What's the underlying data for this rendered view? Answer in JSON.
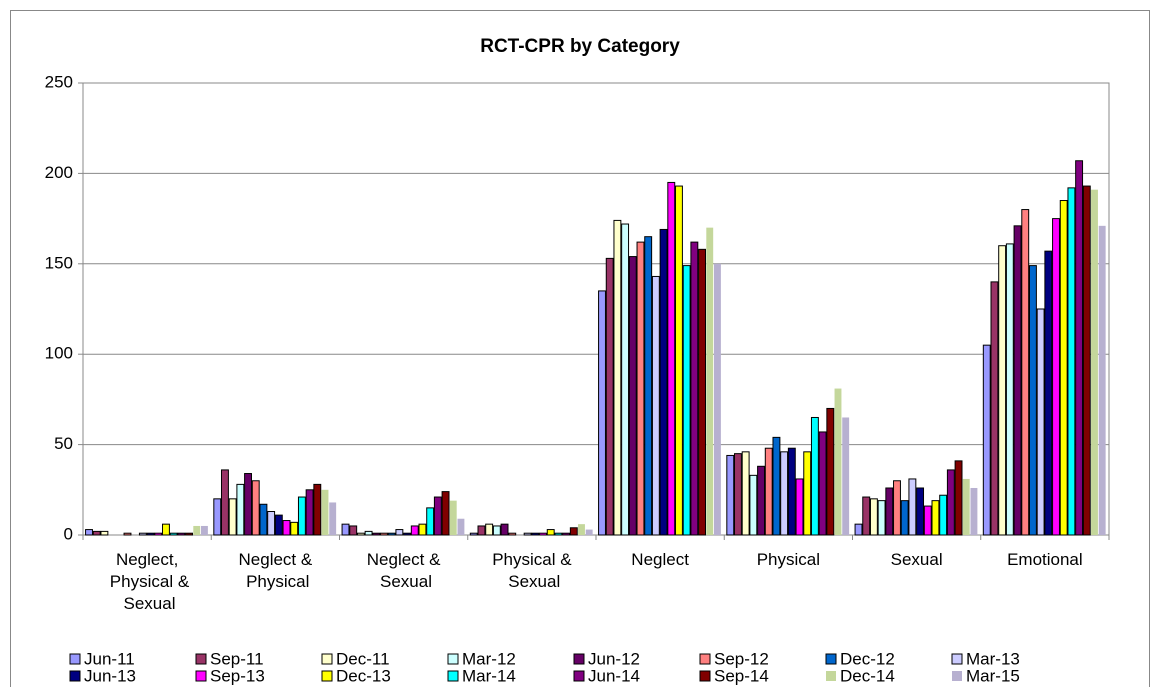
{
  "chart_data": {
    "type": "bar",
    "title": "RCT-CPR by Category",
    "categories": [
      "Neglect, Physical & Sexual",
      "Neglect & Physical",
      "Neglect & Sexual",
      "Physical & Sexual",
      "Neglect",
      "Physical",
      "Sexual",
      "Emotional"
    ],
    "series": [
      {
        "name": "Jun-11",
        "color": "#9999ff",
        "values": [
          3,
          20,
          6,
          1,
          135,
          44,
          6,
          105
        ]
      },
      {
        "name": "Sep-11",
        "color": "#993366",
        "values": [
          2,
          36,
          5,
          5,
          153,
          45,
          21,
          140
        ]
      },
      {
        "name": "Dec-11",
        "color": "#ffffcc",
        "values": [
          2,
          20,
          1,
          6,
          174,
          46,
          20,
          160
        ]
      },
      {
        "name": "Mar-12",
        "color": "#ccffff",
        "values": [
          0,
          28,
          2,
          5,
          172,
          33,
          19,
          161
        ]
      },
      {
        "name": "Jun-12",
        "color": "#660066",
        "values": [
          0,
          34,
          1,
          6,
          154,
          38,
          26,
          171
        ]
      },
      {
        "name": "Sep-12",
        "color": "#ff8080",
        "values": [
          1,
          30,
          1,
          1,
          162,
          48,
          30,
          180
        ]
      },
      {
        "name": "Dec-12",
        "color": "#0066cc",
        "values": [
          0,
          17,
          1,
          0,
          165,
          54,
          19,
          149
        ]
      },
      {
        "name": "Mar-13",
        "color": "#ccccff",
        "values": [
          1,
          13,
          3,
          1,
          143,
          46,
          31,
          125
        ]
      },
      {
        "name": "Jun-13",
        "color": "#000080",
        "values": [
          1,
          11,
          1,
          1,
          169,
          48,
          26,
          157
        ]
      },
      {
        "name": "Sep-13",
        "color": "#ff00ff",
        "values": [
          1,
          8,
          5,
          1,
          195,
          31,
          16,
          175
        ]
      },
      {
        "name": "Dec-13",
        "color": "#ffff00",
        "values": [
          6,
          7,
          6,
          3,
          193,
          46,
          19,
          185
        ]
      },
      {
        "name": "Mar-14",
        "color": "#00ffff",
        "values": [
          1,
          21,
          15,
          1,
          149,
          65,
          22,
          192
        ]
      },
      {
        "name": "Jun-14",
        "color": "#800080",
        "values": [
          1,
          25,
          21,
          1,
          162,
          57,
          36,
          207
        ]
      },
      {
        "name": "Sep-14",
        "color": "#800000",
        "values": [
          1,
          28,
          24,
          4,
          158,
          70,
          41,
          193
        ]
      },
      {
        "name": "Dec-14",
        "color": "#c4d79b",
        "values": [
          5,
          25,
          19,
          6,
          170,
          81,
          31,
          191
        ]
      },
      {
        "name": "Mar-15",
        "color": "#b7b0d0",
        "values": [
          5,
          18,
          9,
          3,
          150,
          65,
          26,
          171
        ]
      }
    ],
    "ylim": [
      0,
      250
    ],
    "yticks": [
      0,
      50,
      100,
      150,
      200,
      250
    ],
    "grid": true,
    "legend": "bottom"
  }
}
